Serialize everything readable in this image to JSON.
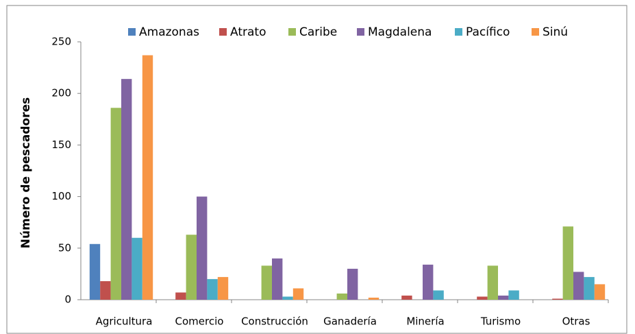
{
  "chart_data": {
    "type": "bar",
    "ylabel": "Número de pescadores",
    "categories": [
      "Agricultura",
      "Comercio",
      "Construcción",
      "Ganadería",
      "Minería",
      "Turismo",
      "Otras"
    ],
    "series": [
      {
        "name": "Amazonas",
        "color": "#4f81bd",
        "values": [
          54,
          0,
          0,
          0,
          0,
          0,
          0
        ]
      },
      {
        "name": "Atrato",
        "color": "#c0504d",
        "values": [
          18,
          7,
          0,
          0,
          4,
          3,
          1
        ]
      },
      {
        "name": "Caribe",
        "color": "#9bbb59",
        "values": [
          186,
          63,
          33,
          6,
          0,
          33,
          71
        ]
      },
      {
        "name": "Magdalena",
        "color": "#8064a2",
        "values": [
          214,
          100,
          40,
          30,
          34,
          4,
          27
        ]
      },
      {
        "name": "Pacífico",
        "color": "#4bacc6",
        "values": [
          60,
          20,
          3,
          0,
          9,
          9,
          22
        ]
      },
      {
        "name": "Sinú",
        "color": "#f79646",
        "values": [
          237,
          22,
          11,
          2,
          0,
          0,
          15
        ]
      }
    ],
    "ylim": [
      0,
      250
    ],
    "yticks": [
      0,
      50,
      100,
      150,
      200,
      250
    ],
    "grid": false,
    "legend": "top"
  }
}
